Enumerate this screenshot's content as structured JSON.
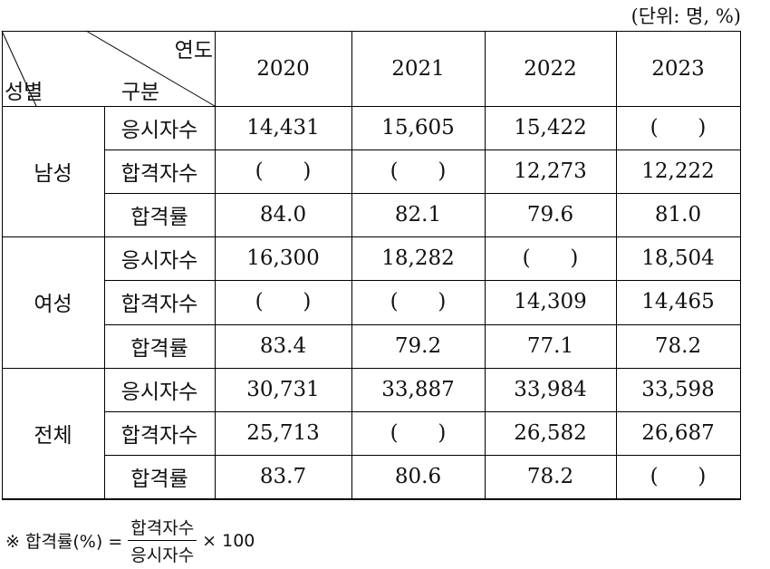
{
  "unit": "(단위: 명, %)",
  "table": {
    "header": {
      "year_label": "연도",
      "gender_label": "성별",
      "category_label": "구분",
      "years": [
        "2020",
        "2021",
        "2022",
        "2023"
      ]
    },
    "groups": [
      {
        "label": "남성",
        "rows": [
          {
            "label": "응시자수",
            "cells": [
              "14,431",
              "15,605",
              "15,422",
              "(      )"
            ]
          },
          {
            "label": "합격자수",
            "cells": [
              "(      )",
              "(      )",
              "12,273",
              "12,222"
            ]
          },
          {
            "label": "합격률",
            "cells": [
              "84.0",
              "82.1",
              "79.6",
              "81.0"
            ]
          }
        ]
      },
      {
        "label": "여성",
        "rows": [
          {
            "label": "응시자수",
            "cells": [
              "16,300",
              "18,282",
              "(      )",
              "18,504"
            ]
          },
          {
            "label": "합격자수",
            "cells": [
              "(      )",
              "(      )",
              "14,309",
              "14,465"
            ]
          },
          {
            "label": "합격률",
            "cells": [
              "83.4",
              "79.2",
              "77.1",
              "78.2"
            ]
          }
        ]
      },
      {
        "label": "전체",
        "rows": [
          {
            "label": "응시자수",
            "cells": [
              "30,731",
              "33,887",
              "33,984",
              "33,598"
            ]
          },
          {
            "label": "합격자수",
            "cells": [
              "25,713",
              "(      )",
              "26,582",
              "26,687"
            ]
          },
          {
            "label": "합격률",
            "cells": [
              "83.7",
              "80.6",
              "78.2",
              "(      )"
            ]
          }
        ]
      }
    ]
  },
  "note": {
    "prefix": "※ 합격률(%) =",
    "numerator": "합격자수",
    "denominator": "응시자수",
    "suffix": "× 100"
  }
}
